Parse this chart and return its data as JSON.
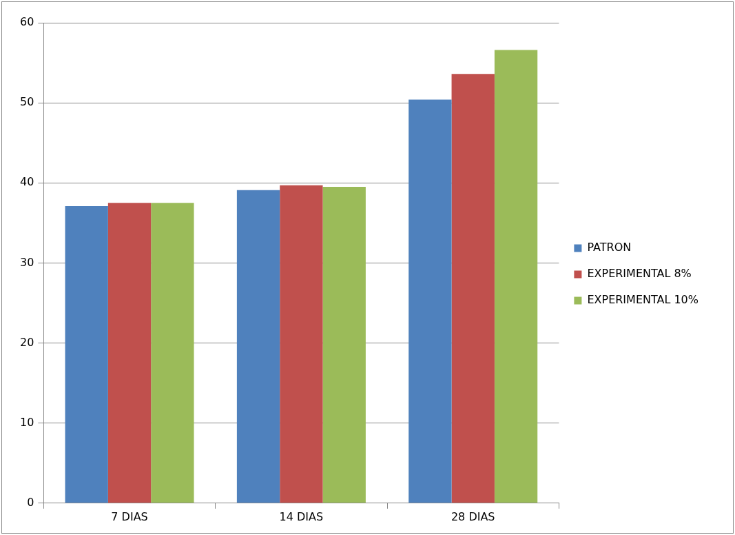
{
  "chart_data": {
    "type": "bar",
    "categories": [
      "7 DIAS",
      "14 DIAS",
      "28 DIAS"
    ],
    "series": [
      {
        "name": "PATRON",
        "color": "#4f81bd",
        "values": [
          37.1,
          39.1,
          50.4
        ]
      },
      {
        "name": "EXPERIMENTAL 8%",
        "color": "#c0504d",
        "values": [
          37.5,
          39.7,
          53.6
        ]
      },
      {
        "name": "EXPERIMENTAL 10%",
        "color": "#9bbb59",
        "values": [
          37.5,
          39.5,
          56.6
        ]
      }
    ],
    "ylim": [
      0,
      60
    ],
    "yticks": [
      0,
      10,
      20,
      30,
      40,
      50,
      60
    ],
    "grid": "y",
    "legend": "right"
  }
}
